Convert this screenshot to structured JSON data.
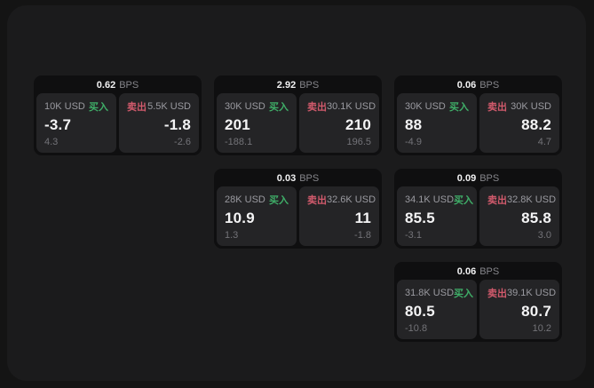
{
  "labels": {
    "buy": "买入",
    "sell": "卖出",
    "bps": "BPS"
  },
  "colors": {
    "buy_accent": "#3fae68",
    "sell_accent": "#d15a6c",
    "panel_bg": "#1b1b1c",
    "card_bg": "#0f0f10",
    "tile_bg": "#242426",
    "value_text": "#f4f4f5",
    "muted_text": "#9a9aa0",
    "dim_text": "#737378"
  },
  "cards": [
    {
      "col": 1,
      "row": 1,
      "bps": "0.62",
      "buy": {
        "amount": "10K USD",
        "value": "-3.7",
        "delta": "4.3"
      },
      "sell": {
        "amount": "5.5K USD",
        "value": "-1.8",
        "delta": "-2.6"
      }
    },
    {
      "col": 2,
      "row": 1,
      "bps": "2.92",
      "buy": {
        "amount": "30K USD",
        "value": "201",
        "delta": "-188.1"
      },
      "sell": {
        "amount": "30.1K USD",
        "value": "210",
        "delta": "196.5"
      }
    },
    {
      "col": 3,
      "row": 1,
      "bps": "0.06",
      "buy": {
        "amount": "30K USD",
        "value": "88",
        "delta": "-4.9"
      },
      "sell": {
        "amount": "30K USD",
        "value": "88.2",
        "delta": "4.7"
      }
    },
    {
      "col": 2,
      "row": 2,
      "bps": "0.03",
      "buy": {
        "amount": "28K USD",
        "value": "10.9",
        "delta": "1.3"
      },
      "sell": {
        "amount": "32.6K USD",
        "value": "11",
        "delta": "-1.8"
      }
    },
    {
      "col": 3,
      "row": 2,
      "bps": "0.09",
      "buy": {
        "amount": "34.1K USD",
        "value": "85.5",
        "delta": "-3.1"
      },
      "sell": {
        "amount": "32.8K USD",
        "value": "85.8",
        "delta": "3.0"
      }
    },
    {
      "col": 3,
      "row": 3,
      "bps": "0.06",
      "buy": {
        "amount": "31.8K USD",
        "value": "80.5",
        "delta": "-10.8"
      },
      "sell": {
        "amount": "39.1K USD",
        "value": "80.7",
        "delta": "10.2"
      }
    }
  ]
}
